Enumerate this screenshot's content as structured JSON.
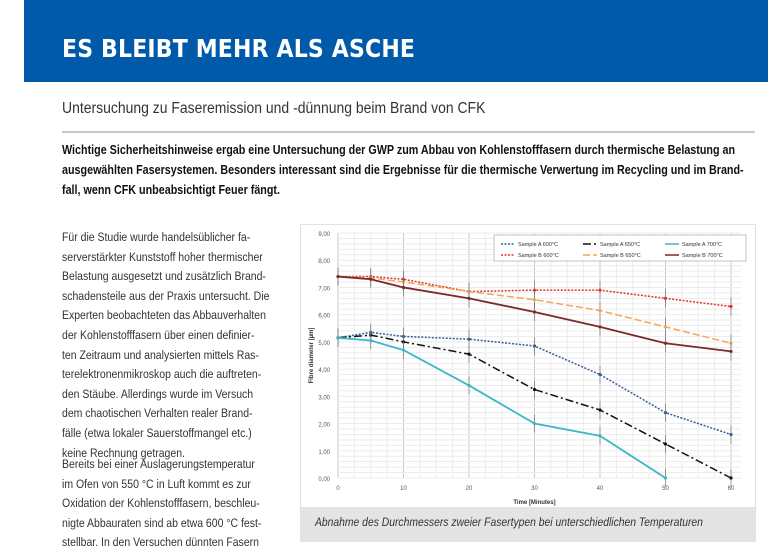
{
  "banner": {
    "title": "ES BLEIBT MEHR ALS ASCHE",
    "color": "#005aa9"
  },
  "subtitle": "Untersuchung zu Faseremission und -dünnung beim Brand von CFK",
  "intro_lines": [
    "Wichtige Sicherheitshinweise ergab eine Untersuchung der GWP zum Abbau von Kohlenstofffasern durch thermische Belastung an",
    "ausgewählten Fasersystemen. Besonders interessant sind die Ergebnisse für die thermische Verwertung im Recycling und im Brand-",
    "fall, wenn CFK unbeabsichtigt Feuer fängt."
  ],
  "paragraph1_lines": [
    "Für die Studie wurde handelsüblicher fa-",
    "serverstärkter Kunststoff hoher thermischer",
    "Belastung ausgesetzt und zusätzlich Brand-",
    "schadensteile aus der Praxis untersucht. Die",
    "Experten beobachteten das Abbauverhalten",
    "der Kohlenstofffasern über einen definier-",
    "ten Zeitraum und analysierten mittels Ras-",
    "terelektronenmikroskop auch die auftreten-",
    "den Stäube. Allerdings wurde im Versuch",
    "dem chaotischen Verhalten realer Brand-",
    "fälle (etwa lokaler Sauerstoffmangel etc.)",
    "keine Rechnung getragen."
  ],
  "paragraph2_lines": [
    "Bereits bei einer Auslagerungstemperatur",
    "im Ofen von 550 °C in Luft kommt es zur",
    "Oxidation der Kohlenstofffasern, beschleu-",
    "nigte Abbauraten sind ab etwa 600 °C fest-",
    "stellbar. In den Versuchen dünnten Fasern"
  ],
  "figure_caption": "Abnahme des Durchmessers zweier Fasertypen bei unterschiedlichen Temperaturen",
  "chart_data": {
    "type": "line",
    "xlabel": "Time [Minutes]",
    "ylabel": "Fibre diameter [µm]",
    "xlim": [
      0,
      60
    ],
    "ylim": [
      0,
      9
    ],
    "x_ticks": [
      "0",
      "10",
      "20",
      "30",
      "40",
      "50",
      "60"
    ],
    "y_ticks": [
      "0,00",
      "1,00",
      "2,00",
      "3,00",
      "4,00",
      "5,00",
      "6,00",
      "7,00",
      "8,00",
      "9,00"
    ],
    "grid": true,
    "error_bars": true,
    "legend_position": "top-right",
    "x": [
      0,
      5,
      10,
      20,
      30,
      40,
      50,
      60
    ],
    "series": [
      {
        "name": "Sample A 600°C",
        "color": "#3a5d9a",
        "dash": "dotted",
        "values": [
          5.15,
          5.35,
          5.2,
          5.1,
          4.85,
          3.8,
          2.4,
          1.6
        ]
      },
      {
        "name": "Sample A 650°C",
        "color": "#111111",
        "dash": "dashdot",
        "values": [
          5.15,
          5.25,
          5.0,
          4.55,
          3.25,
          2.5,
          1.25,
          0.0
        ]
      },
      {
        "name": "Sample A 700°C",
        "color": "#3bb8c4",
        "dash": "solid",
        "values": [
          5.15,
          5.05,
          4.7,
          3.4,
          2.0,
          1.55,
          0.0,
          null
        ]
      },
      {
        "name": "Sample B 600°C",
        "color": "#e0342a",
        "dash": "dotted",
        "values": [
          7.4,
          7.4,
          7.3,
          6.85,
          6.9,
          6.9,
          6.6,
          6.3
        ]
      },
      {
        "name": "Sample B 650°C",
        "color": "#f2a65a",
        "dash": "dashed",
        "values": [
          7.4,
          7.35,
          7.2,
          6.85,
          6.55,
          6.15,
          5.55,
          4.95
        ]
      },
      {
        "name": "Sample B 700°C",
        "color": "#7a2a2a",
        "dash": "solid",
        "values": [
          7.4,
          7.3,
          7.0,
          6.6,
          6.1,
          5.55,
          4.95,
          4.65
        ]
      }
    ]
  }
}
